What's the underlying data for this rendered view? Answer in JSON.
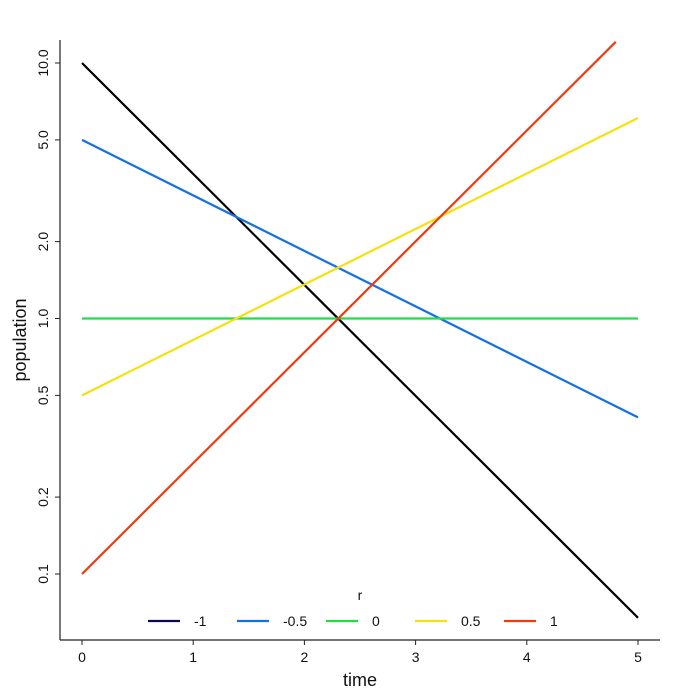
{
  "chart_data": {
    "type": "line",
    "title": "",
    "xlabel": "time",
    "ylabel": "population",
    "x_scale": "linear",
    "y_scale": "log",
    "xlim": [
      0,
      5
    ],
    "ylim": [
      0.07,
      12
    ],
    "x_ticks": [
      0,
      1,
      2,
      3,
      4,
      5
    ],
    "x_tick_labels": [
      "0",
      "1",
      "2",
      "3",
      "4",
      "5"
    ],
    "y_ticks": [
      0.1,
      0.2,
      0.5,
      1.0,
      2.0,
      5.0,
      10.0
    ],
    "y_tick_labels": [
      "0.1",
      "0.2",
      "0.5",
      "1.0",
      "2.0",
      "5.0",
      "10.0"
    ],
    "grid": false,
    "legend": {
      "title": "r",
      "position": "bottom",
      "orientation": "horizontal"
    },
    "series": [
      {
        "name": "-1",
        "color": "#000000",
        "legend_color": "#0a0a50",
        "x": [
          0,
          5
        ],
        "y": [
          10.0,
          0.0674
        ]
      },
      {
        "name": "-0.5",
        "color": "#1470e8",
        "legend_color": "#1470e8",
        "x": [
          0,
          5
        ],
        "y": [
          5.0,
          0.41
        ]
      },
      {
        "name": "0",
        "color": "#22dd44",
        "legend_color": "#22dd44",
        "x": [
          0,
          5
        ],
        "y": [
          1.0,
          1.0
        ]
      },
      {
        "name": "0.5",
        "color": "#f5e010",
        "legend_color": "#f5e010",
        "x": [
          0,
          5
        ],
        "y": [
          0.5,
          6.09
        ]
      },
      {
        "name": "1",
        "color": "#f03a10",
        "legend_color": "#f03a10",
        "x": [
          0,
          4.8
        ],
        "y": [
          0.1,
          12.1
        ]
      }
    ]
  }
}
